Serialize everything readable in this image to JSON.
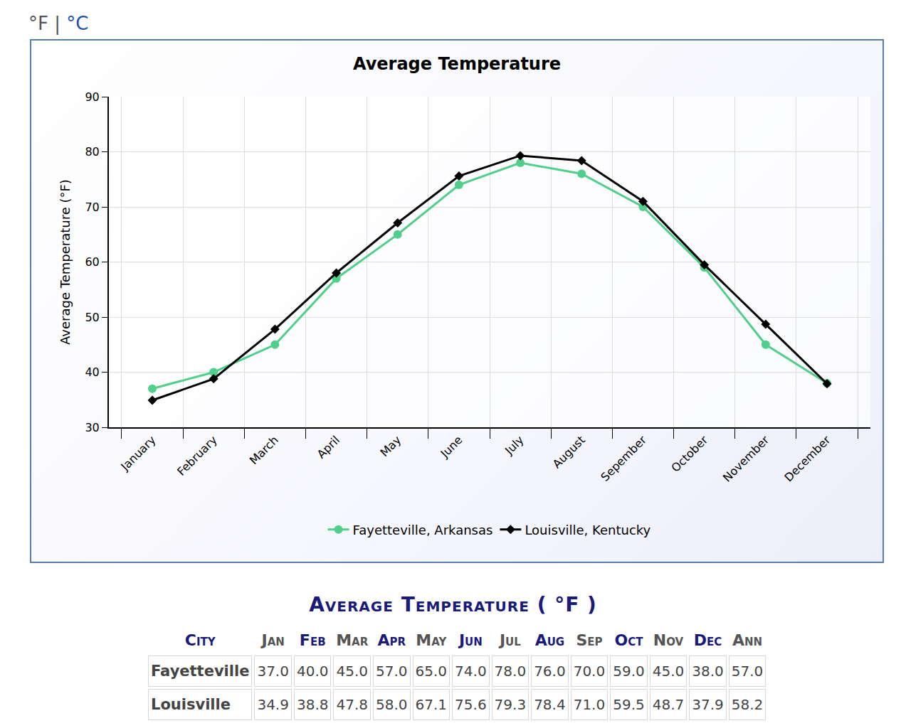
{
  "unit_toggle": {
    "options": [
      "°F",
      "°C"
    ],
    "separator": "|"
  },
  "chart_data": {
    "type": "line",
    "title": "Average Temperature",
    "y_label": "Average Temperature (°F)",
    "categories": [
      "January",
      "February",
      "March",
      "April",
      "May",
      "June",
      "July",
      "August",
      "Sepember",
      "October",
      "November",
      "December"
    ],
    "series": [
      {
        "name": "Fayetteville, Arkansas",
        "color": "#4fcf8a",
        "marker": "circle",
        "values": [
          37.0,
          40.0,
          45.0,
          57.0,
          65.0,
          74.0,
          78.0,
          76.0,
          70.0,
          59.0,
          45.0,
          38.0
        ]
      },
      {
        "name": "Louisville, Kentucky",
        "color": "#000000",
        "marker": "diamond",
        "values": [
          34.9,
          38.8,
          47.8,
          58.0,
          67.1,
          75.6,
          79.3,
          78.4,
          71.0,
          59.5,
          48.7,
          37.9
        ]
      }
    ],
    "ylim": [
      30,
      90
    ],
    "yticks": [
      30,
      40,
      50,
      60,
      70,
      80,
      90
    ],
    "grid": true,
    "legend": "bottom"
  },
  "table": {
    "title": "Average Temperature ( °F )",
    "header": [
      "City",
      "Jan",
      "Feb",
      "Mar",
      "Apr",
      "May",
      "Jun",
      "Jul",
      "Aug",
      "Sep",
      "Oct",
      "Nov",
      "Dec",
      "Ann"
    ],
    "rows": [
      [
        "Fayetteville",
        "37.0",
        "40.0",
        "45.0",
        "57.0",
        "65.0",
        "74.0",
        "78.0",
        "76.0",
        "70.0",
        "59.0",
        "45.0",
        "38.0",
        "57.0"
      ],
      [
        "Louisville",
        "34.9",
        "38.8",
        "47.8",
        "58.0",
        "67.1",
        "75.6",
        "79.3",
        "78.4",
        "71.0",
        "59.5",
        "48.7",
        "37.9",
        "58.2"
      ]
    ]
  }
}
